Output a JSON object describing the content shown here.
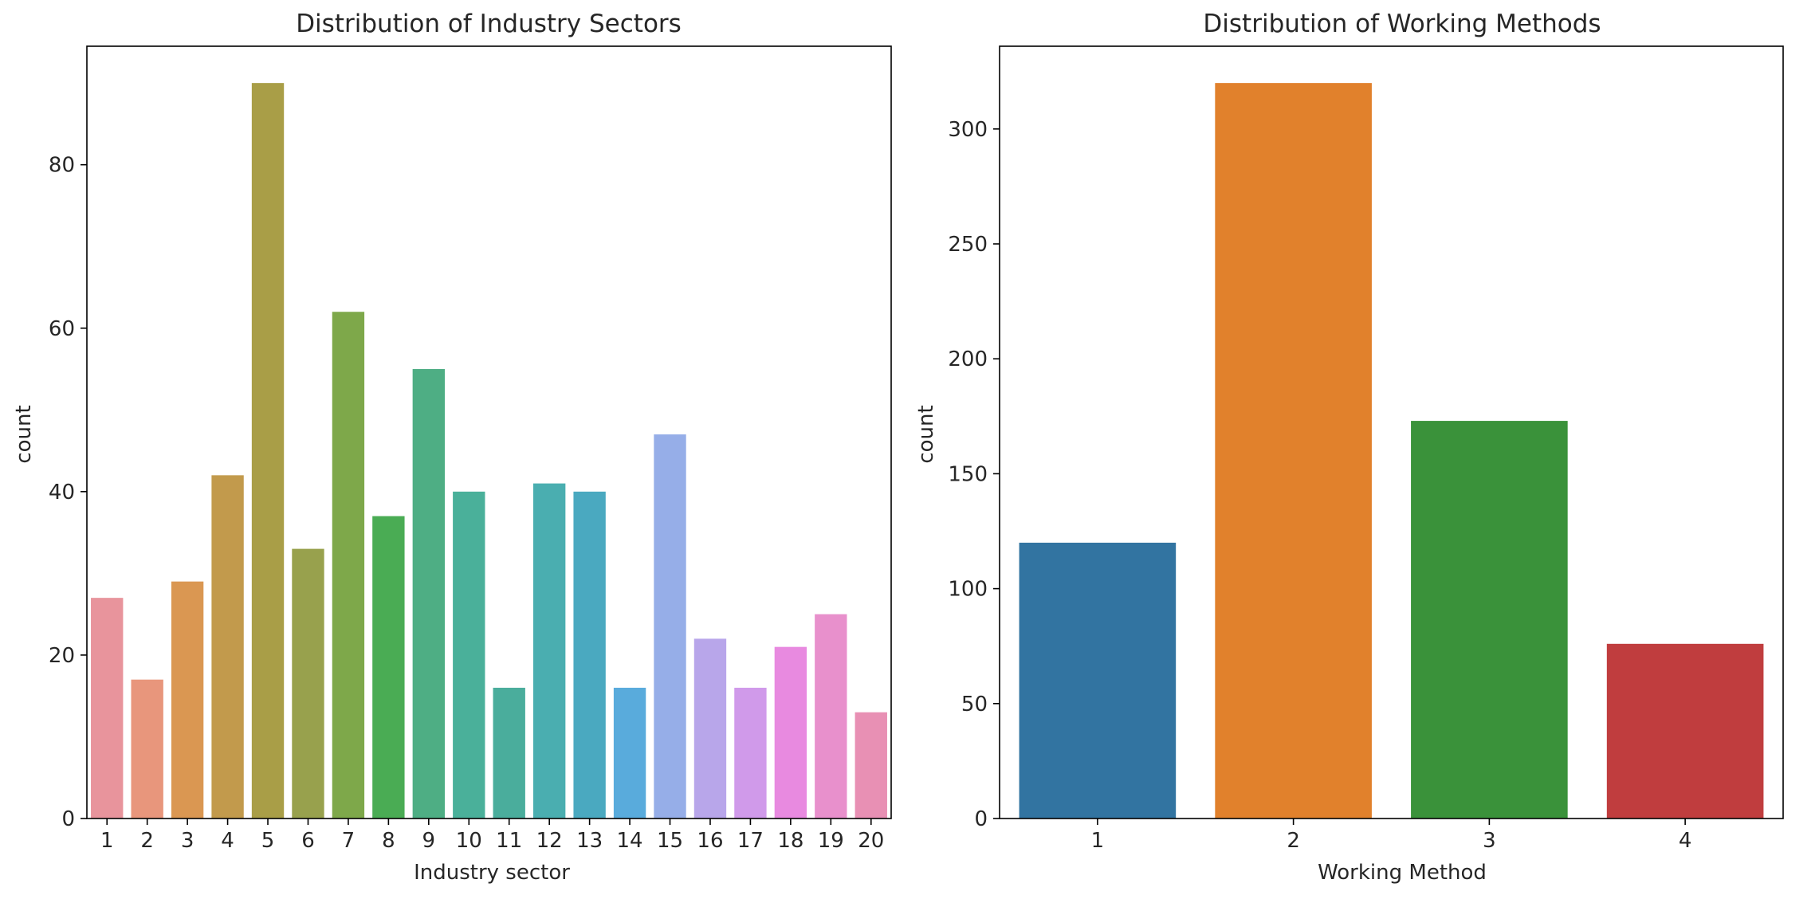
{
  "chart_data": [
    {
      "type": "bar",
      "title": "Distribution of Industry Sectors",
      "xlabel": "Industry sector",
      "ylabel": "count",
      "categories": [
        "1",
        "2",
        "3",
        "4",
        "5",
        "6",
        "7",
        "8",
        "9",
        "10",
        "11",
        "12",
        "13",
        "14",
        "15",
        "16",
        "17",
        "18",
        "19",
        "20"
      ],
      "values": [
        27,
        17,
        29,
        42,
        90,
        33,
        62,
        37,
        55,
        40,
        16,
        41,
        40,
        16,
        47,
        22,
        16,
        21,
        25,
        13
      ],
      "colors": [
        "#e8949c",
        "#e8967c",
        "#da9752",
        "#c29a4c",
        "#a99e47",
        "#98a14d",
        "#7ea84a",
        "#4aac54",
        "#4eae84",
        "#4ab09a",
        "#4aad9c",
        "#4aaeb0",
        "#4aa9c0",
        "#59abdc",
        "#96aee8",
        "#b8a6ea",
        "#d09aea",
        "#e88ae0",
        "#e890cc",
        "#e890b4"
      ],
      "ylim": [
        0,
        94.5
      ],
      "yticks": [
        0,
        20,
        40,
        60,
        80
      ],
      "grid": false
    },
    {
      "type": "bar",
      "title": "Distribution of Working Methods",
      "xlabel": "Working Method",
      "ylabel": "count",
      "categories": [
        "1",
        "2",
        "3",
        "4"
      ],
      "values": [
        120,
        320,
        173,
        76
      ],
      "colors": [
        "#3274a1",
        "#e1812c",
        "#3a923a",
        "#c03d3e"
      ],
      "ylim": [
        0,
        336
      ],
      "yticks": [
        0,
        50,
        100,
        150,
        200,
        250,
        300
      ],
      "grid": false
    }
  ]
}
